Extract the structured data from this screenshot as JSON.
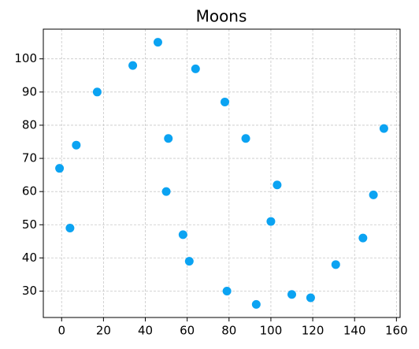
{
  "chart_data": {
    "type": "scatter",
    "title": "Moons",
    "x": [
      -1,
      4,
      7,
      17,
      34,
      46,
      50,
      51,
      58,
      61,
      64,
      78,
      79,
      88,
      93,
      100,
      103,
      110,
      119,
      131,
      144,
      149,
      154
    ],
    "values": [
      67,
      49,
      74,
      90,
      98,
      105,
      60,
      76,
      47,
      39,
      97,
      87,
      30,
      76,
      26,
      51,
      62,
      29,
      28,
      38,
      46,
      59,
      79
    ],
    "color": "#0ba3f2",
    "xlim": [
      -8.75,
      161.75
    ],
    "ylim": [
      22.05,
      108.95
    ],
    "xticks": [
      0,
      20,
      40,
      60,
      80,
      100,
      120,
      140,
      160
    ],
    "yticks": [
      30,
      40,
      50,
      60,
      70,
      80,
      90,
      100
    ],
    "grid": true
  }
}
